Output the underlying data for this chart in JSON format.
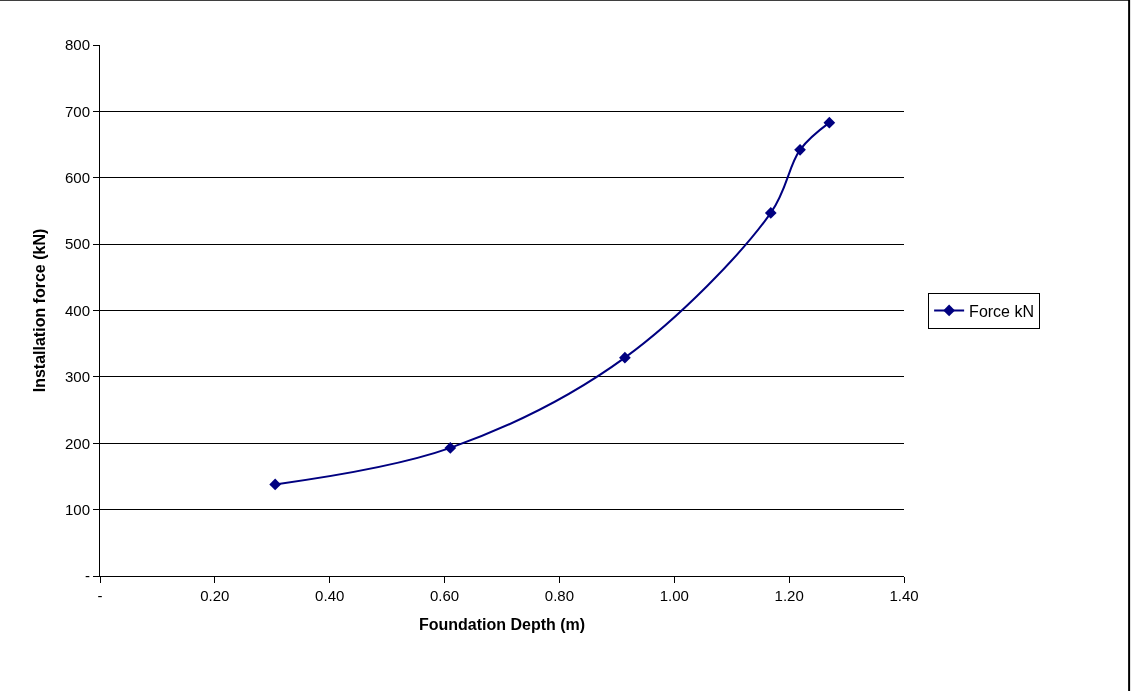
{
  "chart_data": {
    "type": "line",
    "xlabel": "Foundation Depth (m)",
    "ylabel": "Installation force (kN)",
    "x": [
      0.305,
      0.61,
      0.914,
      1.168,
      1.219,
      1.27
    ],
    "series": [
      {
        "name": "Force kN",
        "color": "#000080",
        "values": [
          138,
          193,
          329,
          547,
          642,
          683
        ]
      }
    ],
    "xlim": [
      0,
      1.4
    ],
    "xticks": [
      {
        "value": 0,
        "label": "-"
      },
      {
        "value": 0.2,
        "label": "0.20"
      },
      {
        "value": 0.4,
        "label": "0.40"
      },
      {
        "value": 0.6,
        "label": "0.60"
      },
      {
        "value": 0.8,
        "label": "0.80"
      },
      {
        "value": 1.0,
        "label": "1.00"
      },
      {
        "value": 1.2,
        "label": "1.20"
      },
      {
        "value": 1.4,
        "label": "1.40"
      }
    ],
    "ylim": [
      0,
      800
    ],
    "yticks": [
      {
        "value": 0,
        "label": "-"
      },
      100,
      200,
      300,
      400,
      500,
      600,
      700,
      800
    ],
    "grid": "y",
    "legend": "right",
    "marker": "diamond",
    "line_style": "solid"
  }
}
